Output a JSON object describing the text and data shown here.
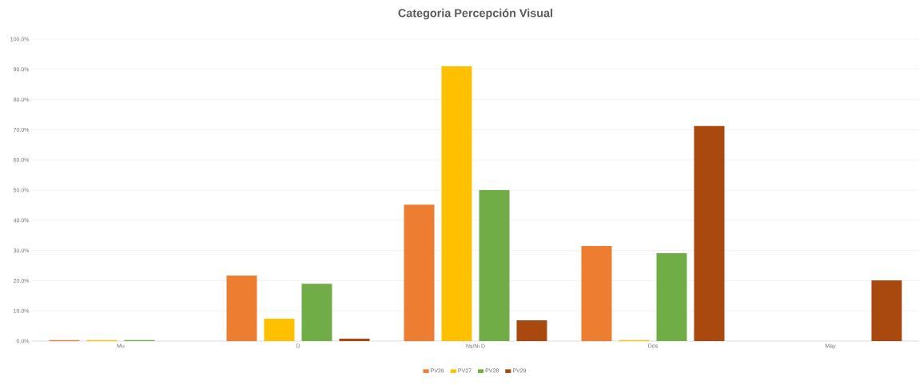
{
  "chart_data": {
    "type": "bar",
    "title": "Categoria Percepción Visual",
    "categories": [
      "Mu",
      "D",
      "Ns/Ni D",
      "Des",
      "May"
    ],
    "series": [
      {
        "name": "PV26",
        "color": "#ed7d31",
        "values": [
          0.3,
          21.7,
          45.2,
          31.5,
          0
        ]
      },
      {
        "name": "PV27",
        "color": "#ffc000",
        "values": [
          0.3,
          7.4,
          91.0,
          0.3,
          0
        ]
      },
      {
        "name": "PV28",
        "color": "#70ad47",
        "values": [
          0.3,
          19.0,
          50.0,
          29.1,
          0
        ]
      },
      {
        "name": "PV29",
        "color": "#a9480f",
        "values": [
          0,
          0.8,
          6.9,
          71.2,
          20.1
        ]
      }
    ],
    "ylim": [
      0,
      100
    ],
    "yticks": [
      {
        "value": 0,
        "label": "0.0%"
      },
      {
        "value": 10,
        "label": "10.0%"
      },
      {
        "value": 20,
        "label": "20.0%"
      },
      {
        "value": 30,
        "label": "30.0%"
      },
      {
        "value": 40,
        "label": "40.0%"
      },
      {
        "value": 50,
        "label": "50.0%"
      },
      {
        "value": 60,
        "label": "60.0%"
      },
      {
        "value": 70,
        "label": "70.0%"
      },
      {
        "value": 80,
        "label": "80.0%"
      },
      {
        "value": 90,
        "label": "90.0%"
      },
      {
        "value": 100,
        "label": "100.0%"
      }
    ],
    "grid": "y",
    "legend": "bottom"
  }
}
